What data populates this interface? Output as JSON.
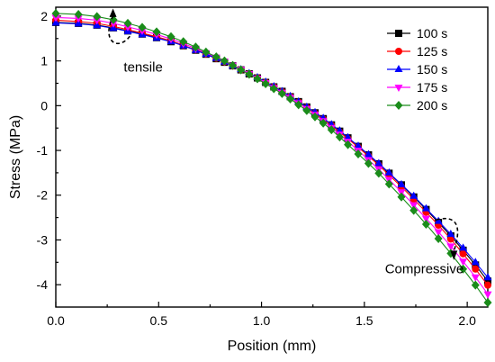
{
  "chart_data": {
    "type": "line",
    "xlabel": "Position (mm)",
    "ylabel": "Stress (MPa)",
    "xlim": [
      0,
      2.1
    ],
    "ylim": [
      -4.5,
      2.2
    ],
    "xticks": [
      0.0,
      0.5,
      1.0,
      1.5,
      2.0
    ],
    "xtick_labels": [
      "0.0",
      "0.5",
      "1.0",
      "1.5",
      "2.0"
    ],
    "yticks": [
      2,
      1,
      0,
      -1,
      -2,
      -3,
      -4
    ],
    "ytick_labels": [
      "2",
      "1",
      "0",
      "-1",
      "-2",
      "-3",
      "-4"
    ],
    "grid": false,
    "legend_position": "top-right",
    "x": [
      0.0,
      0.11,
      0.2,
      0.28,
      0.35,
      0.42,
      0.49,
      0.56,
      0.62,
      0.68,
      0.73,
      0.78,
      0.82,
      0.86,
      0.9,
      0.94,
      0.98,
      1.02,
      1.06,
      1.1,
      1.14,
      1.18,
      1.22,
      1.26,
      1.3,
      1.34,
      1.38,
      1.42,
      1.47,
      1.52,
      1.57,
      1.62,
      1.68,
      1.74,
      1.8,
      1.86,
      1.92,
      1.98,
      2.04,
      2.1
    ],
    "series": [
      {
        "name": "100 s",
        "color": "#000000",
        "marker": "square",
        "values": [
          1.86,
          1.84,
          1.8,
          1.74,
          1.67,
          1.6,
          1.52,
          1.43,
          1.34,
          1.24,
          1.15,
          1.05,
          0.97,
          0.89,
          0.8,
          0.71,
          0.62,
          0.52,
          0.42,
          0.32,
          0.2,
          0.09,
          -0.03,
          -0.16,
          -0.29,
          -0.43,
          -0.57,
          -0.72,
          -0.91,
          -1.1,
          -1.3,
          -1.51,
          -1.77,
          -2.04,
          -2.32,
          -2.61,
          -2.91,
          -3.23,
          -3.56,
          -3.92
        ]
      },
      {
        "name": "125 s",
        "color": "#ff0000",
        "marker": "circle",
        "values": [
          1.91,
          1.88,
          1.84,
          1.77,
          1.7,
          1.62,
          1.54,
          1.45,
          1.35,
          1.25,
          1.16,
          1.06,
          0.98,
          0.89,
          0.8,
          0.71,
          0.62,
          0.52,
          0.42,
          0.31,
          0.2,
          0.08,
          -0.04,
          -0.17,
          -0.3,
          -0.44,
          -0.59,
          -0.74,
          -0.93,
          -1.13,
          -1.33,
          -1.55,
          -1.81,
          -2.09,
          -2.38,
          -2.67,
          -2.98,
          -3.31,
          -3.65,
          -4.01
        ]
      },
      {
        "name": "150 s",
        "color": "#0000ff",
        "marker": "triangle-up",
        "values": [
          1.85,
          1.83,
          1.79,
          1.73,
          1.66,
          1.59,
          1.51,
          1.43,
          1.34,
          1.24,
          1.15,
          1.06,
          0.98,
          0.89,
          0.81,
          0.72,
          0.63,
          0.53,
          0.43,
          0.32,
          0.21,
          0.09,
          -0.03,
          -0.15,
          -0.28,
          -0.42,
          -0.56,
          -0.71,
          -0.9,
          -1.09,
          -1.29,
          -1.5,
          -1.76,
          -2.02,
          -2.3,
          -2.58,
          -2.87,
          -3.18,
          -3.5,
          -3.84
        ]
      },
      {
        "name": "175 s",
        "color": "#ff00ff",
        "marker": "triangle-down",
        "values": [
          1.97,
          1.95,
          1.91,
          1.84,
          1.76,
          1.68,
          1.59,
          1.49,
          1.39,
          1.28,
          1.18,
          1.08,
          0.99,
          0.9,
          0.81,
          0.71,
          0.61,
          0.51,
          0.4,
          0.29,
          0.18,
          0.06,
          -0.07,
          -0.2,
          -0.34,
          -0.49,
          -0.64,
          -0.8,
          -1.0,
          -1.21,
          -1.42,
          -1.65,
          -1.93,
          -2.22,
          -2.52,
          -2.82,
          -3.14,
          -3.48,
          -3.83,
          -4.21
        ]
      },
      {
        "name": "200 s",
        "color": "#1a8c1a",
        "marker": "diamond",
        "values": [
          2.06,
          2.04,
          1.99,
          1.92,
          1.84,
          1.75,
          1.65,
          1.54,
          1.43,
          1.31,
          1.2,
          1.09,
          1.0,
          0.9,
          0.8,
          0.7,
          0.6,
          0.49,
          0.38,
          0.27,
          0.15,
          0.02,
          -0.11,
          -0.25,
          -0.39,
          -0.54,
          -0.7,
          -0.87,
          -1.08,
          -1.29,
          -1.51,
          -1.75,
          -2.04,
          -2.34,
          -2.65,
          -2.97,
          -3.3,
          -3.65,
          -4.01,
          -4.4
        ]
      }
    ],
    "annotations": [
      {
        "text": "tensile",
        "x": 0.3,
        "y": 1.7,
        "arrow_direction": "up"
      },
      {
        "text": "Compressive",
        "x": 1.91,
        "y": -2.9,
        "arrow_direction": "down"
      }
    ]
  }
}
